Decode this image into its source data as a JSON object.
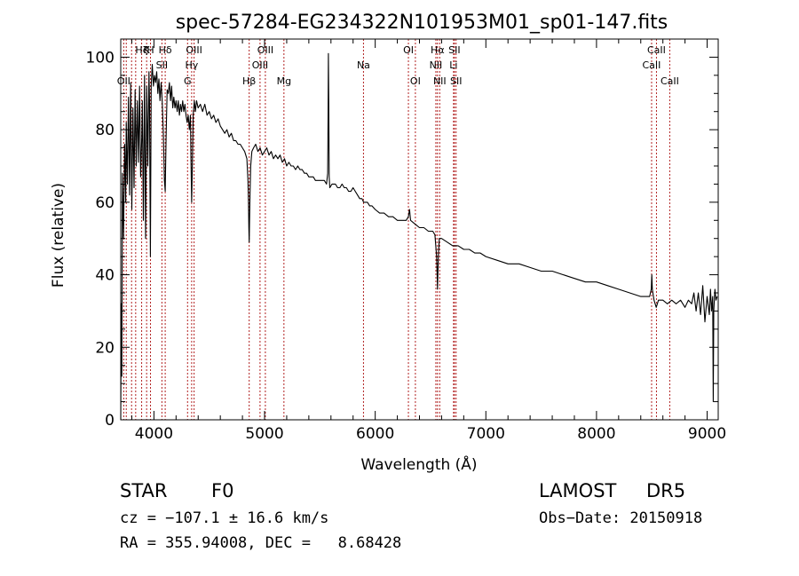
{
  "chart_data": {
    "type": "line",
    "title": "spec-57284-EG234322N101953M01_sp01-147.fits",
    "xlabel": "Wavelength (Å)",
    "ylabel": "Flux (relative)",
    "xlim": [
      3700,
      9100
    ],
    "ylim": [
      0,
      105
    ],
    "x_ticks": [
      4000,
      5000,
      6000,
      7000,
      8000,
      9000
    ],
    "x_tick_labels": [
      "4000",
      "5000",
      "6000",
      "7000",
      "8000",
      "9000"
    ],
    "y_ticks": [
      0,
      20,
      40,
      60,
      80,
      100
    ],
    "y_tick_labels": [
      "0",
      "20",
      "40",
      "60",
      "80",
      "100"
    ],
    "grid": false,
    "series": [
      {
        "points": [
          [
            3700,
            0
          ],
          [
            3705,
            32
          ],
          [
            3710,
            12
          ],
          [
            3715,
            68
          ],
          [
            3725,
            50
          ],
          [
            3735,
            76
          ],
          [
            3745,
            60
          ],
          [
            3750,
            82
          ],
          [
            3760,
            65
          ],
          [
            3770,
            89
          ],
          [
            3780,
            62
          ],
          [
            3790,
            93
          ],
          [
            3800,
            58
          ],
          [
            3810,
            86
          ],
          [
            3820,
            64
          ],
          [
            3830,
            91
          ],
          [
            3840,
            70
          ],
          [
            3850,
            88
          ],
          [
            3860,
            71
          ],
          [
            3870,
            92
          ],
          [
            3880,
            67
          ],
          [
            3890,
            78
          ],
          [
            3895,
            88
          ],
          [
            3905,
            55
          ],
          [
            3915,
            95
          ],
          [
            3925,
            50
          ],
          [
            3935,
            92
          ],
          [
            3945,
            70
          ],
          [
            3955,
            96
          ],
          [
            3960,
            88
          ],
          [
            3968,
            45
          ],
          [
            3975,
            92
          ],
          [
            3985,
            98
          ],
          [
            3995,
            92
          ],
          [
            4005,
            95
          ],
          [
            4015,
            93
          ],
          [
            4025,
            96
          ],
          [
            4035,
            90
          ],
          [
            4045,
            94
          ],
          [
            4055,
            88
          ],
          [
            4065,
            93
          ],
          [
            4075,
            88
          ],
          [
            4085,
            79
          ],
          [
            4095,
            66
          ],
          [
            4102,
            63
          ],
          [
            4110,
            78
          ],
          [
            4120,
            91
          ],
          [
            4130,
            90
          ],
          [
            4140,
            93
          ],
          [
            4150,
            88
          ],
          [
            4160,
            92
          ],
          [
            4170,
            86
          ],
          [
            4180,
            89
          ],
          [
            4190,
            86
          ],
          [
            4200,
            88
          ],
          [
            4210,
            85
          ],
          [
            4220,
            88
          ],
          [
            4230,
            84
          ],
          [
            4240,
            87
          ],
          [
            4250,
            85
          ],
          [
            4260,
            88
          ],
          [
            4270,
            85
          ],
          [
            4280,
            87
          ],
          [
            4290,
            84
          ],
          [
            4300,
            82
          ],
          [
            4310,
            84
          ],
          [
            4320,
            80
          ],
          [
            4330,
            84
          ],
          [
            4335,
            72
          ],
          [
            4341,
            60
          ],
          [
            4348,
            72
          ],
          [
            4355,
            84
          ],
          [
            4365,
            88
          ],
          [
            4375,
            85
          ],
          [
            4385,
            88
          ],
          [
            4400,
            86
          ],
          [
            4420,
            87
          ],
          [
            4440,
            85
          ],
          [
            4460,
            87
          ],
          [
            4480,
            84
          ],
          [
            4500,
            85
          ],
          [
            4520,
            83
          ],
          [
            4540,
            84
          ],
          [
            4560,
            82
          ],
          [
            4580,
            83
          ],
          [
            4600,
            81
          ],
          [
            4620,
            80
          ],
          [
            4640,
            79
          ],
          [
            4660,
            80
          ],
          [
            4680,
            78
          ],
          [
            4700,
            79
          ],
          [
            4720,
            77
          ],
          [
            4740,
            77
          ],
          [
            4760,
            76
          ],
          [
            4780,
            76
          ],
          [
            4800,
            75
          ],
          [
            4820,
            74
          ],
          [
            4840,
            72
          ],
          [
            4850,
            66
          ],
          [
            4855,
            60
          ],
          [
            4858,
            53
          ],
          [
            4861,
            49
          ],
          [
            4864,
            55
          ],
          [
            4868,
            62
          ],
          [
            4875,
            70
          ],
          [
            4885,
            74
          ],
          [
            4900,
            75
          ],
          [
            4920,
            76
          ],
          [
            4940,
            74
          ],
          [
            4960,
            75
          ],
          [
            4980,
            73
          ],
          [
            5000,
            74
          ],
          [
            5020,
            75
          ],
          [
            5040,
            73
          ],
          [
            5060,
            74
          ],
          [
            5080,
            72
          ],
          [
            5100,
            73
          ],
          [
            5120,
            72
          ],
          [
            5140,
            73
          ],
          [
            5160,
            71
          ],
          [
            5180,
            72
          ],
          [
            5200,
            70
          ],
          [
            5220,
            71
          ],
          [
            5240,
            70
          ],
          [
            5260,
            70
          ],
          [
            5280,
            69
          ],
          [
            5300,
            70
          ],
          [
            5320,
            69
          ],
          [
            5340,
            69
          ],
          [
            5360,
            68
          ],
          [
            5380,
            68
          ],
          [
            5400,
            67
          ],
          [
            5420,
            67
          ],
          [
            5440,
            67
          ],
          [
            5460,
            66
          ],
          [
            5480,
            66
          ],
          [
            5500,
            66
          ],
          [
            5520,
            66
          ],
          [
            5540,
            66
          ],
          [
            5560,
            65
          ],
          [
            5570,
            68
          ],
          [
            5574,
            85
          ],
          [
            5577,
            101
          ],
          [
            5580,
            88
          ],
          [
            5584,
            67
          ],
          [
            5590,
            64
          ],
          [
            5610,
            65
          ],
          [
            5640,
            65
          ],
          [
            5660,
            64
          ],
          [
            5680,
            64
          ],
          [
            5700,
            65
          ],
          [
            5720,
            64
          ],
          [
            5740,
            64
          ],
          [
            5760,
            63
          ],
          [
            5780,
            63
          ],
          [
            5800,
            64
          ],
          [
            5820,
            63
          ],
          [
            5840,
            62
          ],
          [
            5860,
            61
          ],
          [
            5880,
            61
          ],
          [
            5895,
            60
          ],
          [
            5910,
            60
          ],
          [
            5930,
            60
          ],
          [
            5950,
            59
          ],
          [
            5970,
            59
          ],
          [
            6000,
            58
          ],
          [
            6040,
            57
          ],
          [
            6080,
            57
          ],
          [
            6120,
            56
          ],
          [
            6160,
            56
          ],
          [
            6200,
            55
          ],
          [
            6240,
            55
          ],
          [
            6280,
            55
          ],
          [
            6300,
            56
          ],
          [
            6310,
            58
          ],
          [
            6320,
            55
          ],
          [
            6360,
            54
          ],
          [
            6400,
            53
          ],
          [
            6440,
            53
          ],
          [
            6480,
            52
          ],
          [
            6520,
            52
          ],
          [
            6540,
            51
          ],
          [
            6555,
            45
          ],
          [
            6560,
            40
          ],
          [
            6563,
            36
          ],
          [
            6566,
            40
          ],
          [
            6572,
            46
          ],
          [
            6580,
            50
          ],
          [
            6600,
            50
          ],
          [
            6650,
            49
          ],
          [
            6700,
            48
          ],
          [
            6750,
            48
          ],
          [
            6800,
            47
          ],
          [
            6850,
            47
          ],
          [
            6900,
            46
          ],
          [
            6950,
            46
          ],
          [
            7000,
            45
          ],
          [
            7100,
            44
          ],
          [
            7200,
            43
          ],
          [
            7300,
            43
          ],
          [
            7400,
            42
          ],
          [
            7500,
            41
          ],
          [
            7600,
            41
          ],
          [
            7700,
            40
          ],
          [
            7800,
            39
          ],
          [
            7900,
            38
          ],
          [
            8000,
            38
          ],
          [
            8100,
            37
          ],
          [
            8200,
            36
          ],
          [
            8300,
            35
          ],
          [
            8400,
            34
          ],
          [
            8450,
            34
          ],
          [
            8480,
            34
          ],
          [
            8495,
            36
          ],
          [
            8500,
            40
          ],
          [
            8505,
            36
          ],
          [
            8520,
            33
          ],
          [
            8540,
            31
          ],
          [
            8560,
            33
          ],
          [
            8600,
            33
          ],
          [
            8640,
            32
          ],
          [
            8680,
            33
          ],
          [
            8720,
            32
          ],
          [
            8760,
            33
          ],
          [
            8800,
            31
          ],
          [
            8830,
            33
          ],
          [
            8860,
            32
          ],
          [
            8880,
            35
          ],
          [
            8900,
            30
          ],
          [
            8920,
            35
          ],
          [
            8940,
            29
          ],
          [
            8960,
            37
          ],
          [
            8980,
            27
          ],
          [
            9000,
            34
          ],
          [
            9020,
            29
          ],
          [
            9030,
            36
          ],
          [
            9040,
            30
          ],
          [
            9050,
            34
          ],
          [
            9055,
            5
          ],
          [
            9060,
            30
          ],
          [
            9070,
            36
          ],
          [
            9080,
            33
          ],
          [
            9090,
            34
          ]
        ]
      }
    ],
    "lines": [
      {
        "x": 3727,
        "label": "OII",
        "row": 2
      },
      {
        "x": 3750,
        "label": "",
        "row": 0
      },
      {
        "x": 3798,
        "label": "",
        "row": 0
      },
      {
        "x": 3835,
        "label": "",
        "row": 0
      },
      {
        "x": 3889,
        "label": "Hζ",
        "row": 0
      },
      {
        "x": 3934,
        "label": "K",
        "row": 0
      },
      {
        "x": 3969,
        "label": "H",
        "row": 0
      },
      {
        "x": 4072,
        "label": "SII",
        "row": 1
      },
      {
        "x": 4102,
        "label": "Hδ",
        "row": 0
      },
      {
        "x": 4304,
        "label": "G",
        "row": 2
      },
      {
        "x": 4341,
        "label": "Hγ",
        "row": 1
      },
      {
        "x": 4363,
        "label": "OIII",
        "row": 0
      },
      {
        "x": 4861,
        "label": "Hβ",
        "row": 2
      },
      {
        "x": 4959,
        "label": "OIII",
        "row": 1
      },
      {
        "x": 5007,
        "label": "OIII",
        "row": 0
      },
      {
        "x": 5175,
        "label": "Mg",
        "row": 2
      },
      {
        "x": 5894,
        "label": "Na",
        "row": 1
      },
      {
        "x": 6300,
        "label": "OI",
        "row": 0
      },
      {
        "x": 6363,
        "label": "OI",
        "row": 2
      },
      {
        "x": 6548,
        "label": "NII",
        "row": 1
      },
      {
        "x": 6563,
        "label": "Hα",
        "row": 0
      },
      {
        "x": 6583,
        "label": "NII",
        "row": 2
      },
      {
        "x": 6708,
        "label": "Li",
        "row": 1
      },
      {
        "x": 6716,
        "label": "SII",
        "row": 0
      },
      {
        "x": 6731,
        "label": "SII",
        "row": 2
      },
      {
        "x": 8498,
        "label": "CaII",
        "row": 1
      },
      {
        "x": 8542,
        "label": "CaII",
        "row": 0
      },
      {
        "x": 8662,
        "label": "CaII",
        "row": 2
      }
    ],
    "line_color": "#b22222",
    "spectrum_color": "#000000"
  },
  "info": {
    "class": "STAR",
    "subclass": "F0",
    "survey": "LAMOST",
    "release": "DR5",
    "velocity": "cz = −107.1 ± 16.6 km/s",
    "obs_date": "Obs−Date: 20150918",
    "coords": "RA = 355.94008, DEC =   8.68428"
  }
}
